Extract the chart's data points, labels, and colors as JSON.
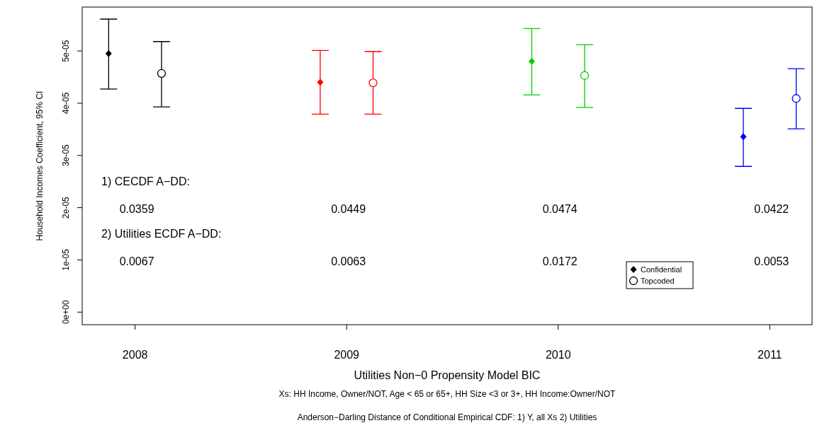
{
  "chart_data": {
    "type": "scatter",
    "xlabel": "Utilities Non−0 Propensity Model BIC",
    "ylabel": "Household Incomes Coefficient, 95% CI",
    "xlim": [
      2007.75,
      2011.2
    ],
    "xticks": [
      2008,
      2009,
      2010,
      2011
    ],
    "ylim": [
      -2.4e-06,
      5.84e-05
    ],
    "yticks": [
      {
        "value": 0,
        "label": "0e+00"
      },
      {
        "value": 1e-05,
        "label": "1e-05"
      },
      {
        "value": 2e-05,
        "label": "2e-05"
      },
      {
        "value": 3e-05,
        "label": "3e-05"
      },
      {
        "value": 4e-05,
        "label": "4e-05"
      },
      {
        "value": 5e-05,
        "label": "5e-05"
      }
    ],
    "legend": "bottom right",
    "grid": false,
    "series": [
      {
        "name": "Confidential",
        "marker": "diamond",
        "color": "#000000",
        "colors": [
          "#000000",
          "#ff0000",
          "#00cd00",
          "#0000ff"
        ],
        "x": [
          2007.875,
          2008.875,
          2009.875,
          2010.875
        ],
        "values": [
          4.95e-05,
          4.4e-05,
          4.8e-05,
          3.36e-05
        ],
        "errors": [
          [
            4.27e-05,
            5.61e-05
          ],
          [
            3.79e-05,
            5.01e-05
          ],
          [
            4.16e-05,
            5.43e-05
          ],
          [
            2.79e-05,
            3.9e-05
          ]
        ]
      },
      {
        "name": "Topcoded",
        "marker": "circle",
        "color": "#000000",
        "colors": [
          "#000000",
          "#ff0000",
          "#00cd00",
          "#0000ff"
        ],
        "x": [
          2008.125,
          2009.125,
          2010.125,
          2011.125
        ],
        "values": [
          4.57e-05,
          4.39e-05,
          4.53e-05,
          4.09e-05
        ],
        "errors": [
          [
            3.93e-05,
            5.18e-05
          ],
          [
            3.79e-05,
            4.99e-05
          ],
          [
            3.92e-05,
            5.12e-05
          ],
          [
            3.51e-05,
            4.66e-05
          ]
        ]
      }
    ],
    "annotations": [
      "1) CECDF A−DD:",
      "0.0359",
      "0.0449",
      "0.0474",
      "0.0422",
      "2) Utilities ECDF A−DD:",
      "0.0067",
      "0.0063",
      "0.0172",
      "0.0053",
      "Xs: HH Income, Owner/NOT, Age < 65 or 65+, HH Size <3 or 3+, HH Income:Owner/NOT",
      "Anderson−Darling Distance of Conditional Empirical CDF: 1) Y, all Xs  2) Utilities"
    ]
  }
}
